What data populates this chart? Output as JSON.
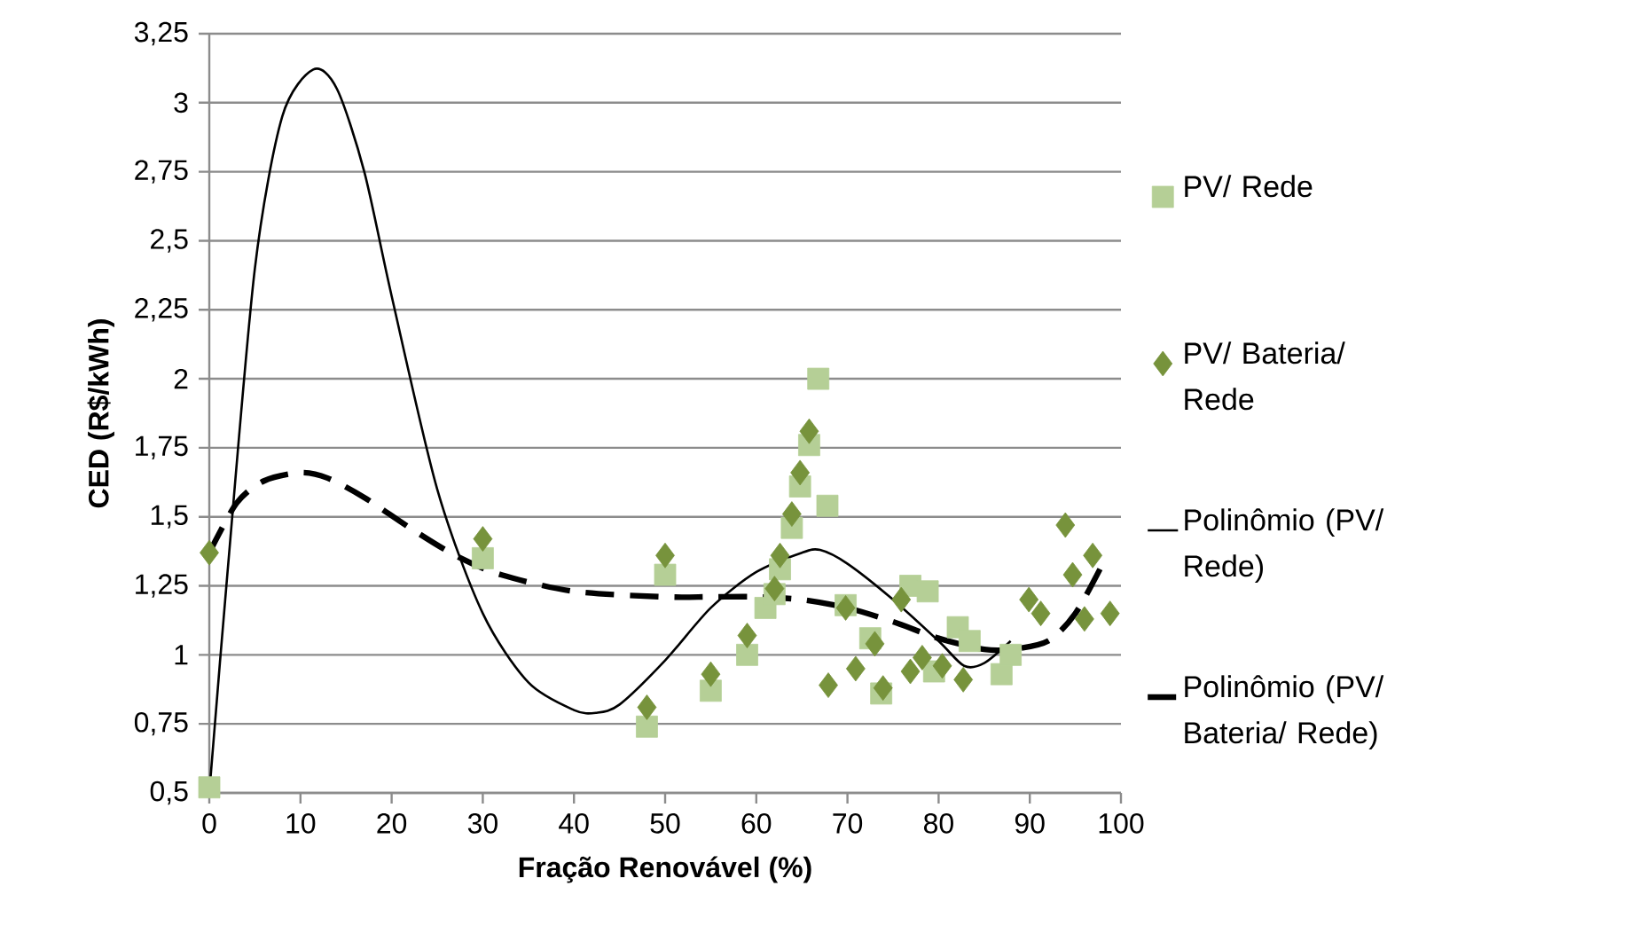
{
  "chart_data": {
    "type": "scatter",
    "xlabel": "Fração Renovável (%)",
    "ylabel": "CED (R$/kWh)",
    "xlim": [
      0,
      100
    ],
    "xticks": [
      0,
      10,
      20,
      30,
      40,
      50,
      60,
      70,
      80,
      90,
      100
    ],
    "ylim": [
      0.5,
      3.25
    ],
    "yticks": [
      {
        "value": 0.5,
        "label": "0,5"
      },
      {
        "value": 0.75,
        "label": "0,75"
      },
      {
        "value": 1,
        "label": "1"
      },
      {
        "value": 1.25,
        "label": "1,25"
      },
      {
        "value": 1.5,
        "label": "1,5"
      },
      {
        "value": 1.75,
        "label": "1,75"
      },
      {
        "value": 2,
        "label": "2"
      },
      {
        "value": 2.25,
        "label": "2,25"
      },
      {
        "value": 2.5,
        "label": "2,5"
      },
      {
        "value": 2.75,
        "label": "2,75"
      },
      {
        "value": 3,
        "label": "3"
      },
      {
        "value": 3.25,
        "label": "3,25"
      }
    ],
    "grid": "y",
    "legend": "right",
    "series": [
      {
        "name": "PV/ Rede",
        "marker": "square",
        "color": "#b5cf96",
        "x": [
          0,
          30,
          48,
          50,
          55,
          59,
          61,
          62,
          62.6,
          63.9,
          64.8,
          65.8,
          66.8,
          67.8,
          69.8,
          72.5,
          73.7,
          76.9,
          78.8,
          79.5,
          82.1,
          83.4,
          86.9,
          87.9
        ],
        "values": [
          0.52,
          1.35,
          0.74,
          1.29,
          0.87,
          1.0,
          1.17,
          1.22,
          1.31,
          1.46,
          1.61,
          1.76,
          2.0,
          1.54,
          1.18,
          1.06,
          0.86,
          1.25,
          1.23,
          0.94,
          1.1,
          1.05,
          0.93,
          1.0
        ]
      },
      {
        "name": "PV/ Bateria/ Rede",
        "marker": "diamond",
        "color": "#77933c",
        "x": [
          0,
          30,
          48,
          50,
          55,
          59,
          62,
          62.6,
          63.9,
          64.8,
          65.8,
          67.9,
          69.8,
          70.9,
          73,
          73.9,
          75.9,
          76.9,
          78.2,
          80.4,
          82.7,
          89.9,
          91.2,
          93.9,
          94.7,
          96,
          96.9,
          98.8
        ],
        "values": [
          1.37,
          1.42,
          0.81,
          1.36,
          0.93,
          1.07,
          1.24,
          1.36,
          1.51,
          1.66,
          1.81,
          0.89,
          1.17,
          0.95,
          1.04,
          0.88,
          1.2,
          0.94,
          0.99,
          0.96,
          0.91,
          1.2,
          1.15,
          1.47,
          1.29,
          1.13,
          1.36,
          1.15
        ]
      },
      {
        "name": "Polinômio (PV/ Rede)",
        "type": "line",
        "marker": "none",
        "line_style": "solid",
        "color": "#000000",
        "x": [
          0,
          2,
          5,
          8,
          11.4,
          14,
          17,
          20,
          25,
          30,
          35,
          40,
          42.4,
          45,
          50,
          55,
          60,
          65,
          67,
          70,
          75,
          80,
          82.8,
          85,
          87.9
        ],
        "values": [
          0.5,
          1.3,
          2.4,
          2.95,
          3.12,
          3.05,
          2.75,
          2.3,
          1.6,
          1.15,
          0.9,
          0.8,
          0.79,
          0.82,
          0.98,
          1.17,
          1.3,
          1.37,
          1.38,
          1.33,
          1.2,
          1.05,
          0.96,
          0.97,
          1.05
        ]
      },
      {
        "name": "Polinômio (PV/ Bateria/ Rede)",
        "type": "line",
        "marker": "none",
        "line_style": "dashed",
        "color": "#000000",
        "x": [
          0,
          3,
          6,
          10,
          13,
          17,
          22,
          27,
          32,
          40,
          50,
          55,
          60,
          65,
          70,
          75,
          80,
          85,
          88,
          92,
          95,
          98
        ],
        "values": [
          1.37,
          1.55,
          1.63,
          1.66,
          1.64,
          1.57,
          1.46,
          1.36,
          1.29,
          1.23,
          1.21,
          1.21,
          1.21,
          1.2,
          1.17,
          1.12,
          1.06,
          1.02,
          1.02,
          1.05,
          1.15,
          1.33
        ]
      }
    ]
  }
}
